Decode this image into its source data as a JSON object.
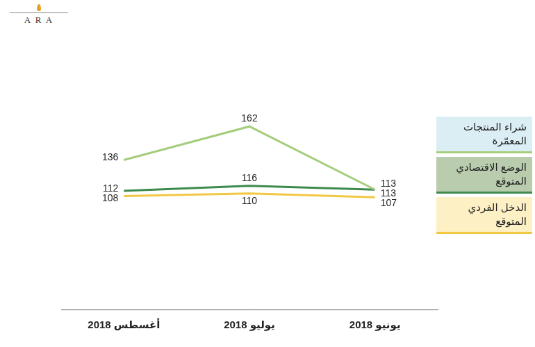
{
  "logo": "A R A",
  "chart_data": {
    "type": "line",
    "categories": [
      "يونيو 2018",
      "يوليو 2018",
      "أغسطس 2018"
    ],
    "series": [
      {
        "name": "شراء المنتجات المعمّرة",
        "color": "#a4cd7c",
        "values": [
          113,
          162,
          136
        ]
      },
      {
        "name": "الوضع الاقتصادي المتوقع",
        "color": "#3d8a4c",
        "values": [
          113,
          116,
          112
        ]
      },
      {
        "name": "الدخل الفردي المتوقع",
        "color": "#f2c744",
        "values": [
          107,
          110,
          108
        ]
      }
    ],
    "ylim": [
      20,
      210
    ],
    "yticks": [],
    "grid": false,
    "legend": "right",
    "data_labels": true,
    "tick_labels": "x"
  }
}
